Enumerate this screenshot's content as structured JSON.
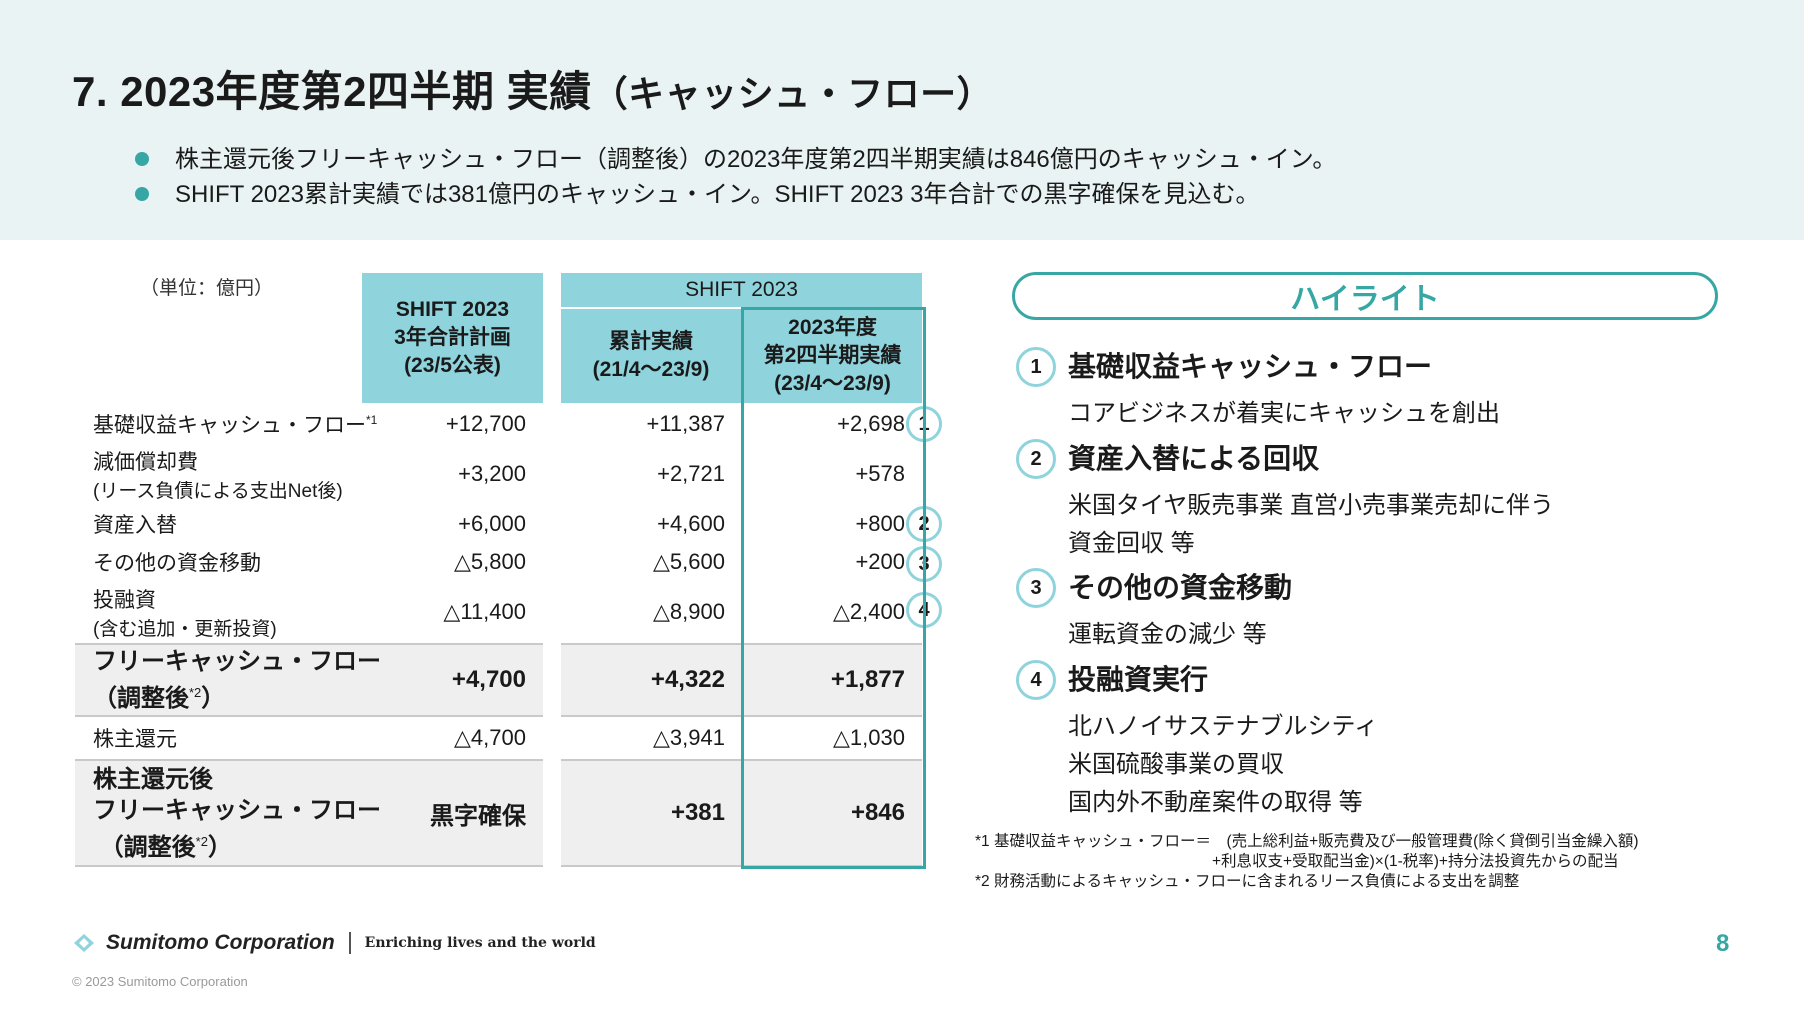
{
  "header": {
    "title": "7. 2023年度第2四半期 実績",
    "subtitle": "（キャッシュ・フロー）",
    "bullets": [
      "株主還元後フリーキャッシュ・フロー（調整後）の2023年度第2四半期実績は846億円のキャッシュ・イン。",
      "SHIFT 2023累計実績では381億円のキャッシュ・イン。SHIFT 2023 3年合計での黒字確保を見込む。"
    ]
  },
  "table": {
    "unit": "（単位：億円）",
    "col_plan": "SHIFT 2023\n3年合計計画\n(23/5公表)",
    "group_header": "SHIFT 2023",
    "col_cum": "累計実績\n(21/4～23/9)",
    "col_q2": "2023年度\n第2四半期実績\n(23/4～23/9)",
    "rows": [
      {
        "label": "基礎収益キャッシュ・フロー",
        "note": "*1",
        "sub": "",
        "plan": "+12,700",
        "cum": "+11,387",
        "q2": "+2,698",
        "badge": "1"
      },
      {
        "label": "減価償却費",
        "sub": "(リース負債による支出Net後)",
        "plan": "+3,200",
        "cum": "+2,721",
        "q2": "+578"
      },
      {
        "label": "資産入替",
        "sub": "",
        "plan": "+6,000",
        "cum": "+4,600",
        "q2": "+800",
        "badge": "2"
      },
      {
        "label": "その他の資金移動",
        "sub": "",
        "plan": "△5,800",
        "cum": "△5,600",
        "q2": "+200",
        "badge": "3"
      },
      {
        "label": "投融資",
        "sub": "(含む追加・更新投資)",
        "plan": "△11,400",
        "cum": "△8,900",
        "q2": "△2,400",
        "badge": "4"
      },
      {
        "label": "フリーキャッシュ・フロー",
        "sub": "（調整後",
        "note": "*2",
        "close": "）",
        "plan": "+4,700",
        "cum": "+4,322",
        "q2": "+1,877"
      },
      {
        "label": "株主還元",
        "sub": "",
        "plan": "△4,700",
        "cum": "△3,941",
        "q2": "△1,030"
      },
      {
        "label": "株主還元後",
        "label2": "フリーキャッシュ・フロー",
        "sub": "（調整後",
        "note": "*2",
        "close": "）",
        "plan": "黒字確保",
        "cum": "+381",
        "q2": "+846"
      }
    ]
  },
  "highlights": {
    "title": "ハイライト",
    "items": [
      {
        "num": "1",
        "title": "基礎収益キャッシュ・フロー",
        "lines": [
          "コアビジネスが着実にキャッシュを創出"
        ]
      },
      {
        "num": "2",
        "title": "資産入替による回収",
        "lines": [
          "米国タイヤ販売事業 直営小売事業売却に伴う",
          "資金回収 等"
        ]
      },
      {
        "num": "3",
        "title": "その他の資金移動",
        "lines": [
          "運転資金の減少 等"
        ]
      },
      {
        "num": "4",
        "title": "投融資実行",
        "lines": [
          "北ハノイサステナブルシティ",
          "米国硫酸事業の買収",
          "国内外不動産案件の取得 等"
        ]
      }
    ]
  },
  "notes": {
    "n1a": "*1 基礎収益キャッシュ・フロー＝　(売上総利益+販売費及び一般管理費(除く貸倒引当金繰入額)",
    "n1b": "+利息収支+受取配当金)×(1-税率)+持分法投資先からの配当",
    "n2": "*2 財務活動によるキャッシュ・フローに含まれるリース負債による支出を調整"
  },
  "footer": {
    "company": "Sumitomo Corporation",
    "tagline": "Enriching lives and the world",
    "page": "8",
    "copyright": "© 2023 Sumitomo Corporation"
  },
  "colors": {
    "accent": "#36a7a4",
    "header_fill": "#8fd3dc",
    "band": "#e9f3f3"
  }
}
